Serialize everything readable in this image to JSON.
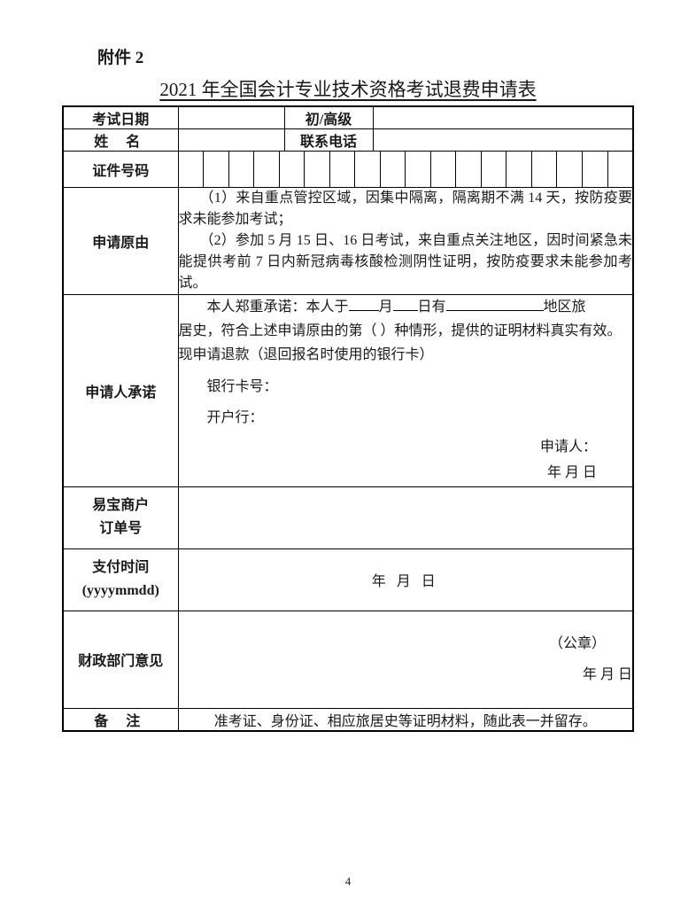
{
  "attachment_label": "附件 2",
  "title": "2021 年全国会计专业技术资格考试退费申请表",
  "row_exam_date_label": "考试日期",
  "row_level_label": "初/高级",
  "row_name_label": "姓 名",
  "row_phone_label": "联系电话",
  "row_id_label": "证件号码",
  "id_box_count": 18,
  "row_reason_label": "申请原由",
  "reason_1": "（1）来自重点管控区域，因集中隔离，隔离期不满 14 天，按防疫要求未能参加考试；",
  "reason_2": "（2）参加 5 月 15 日、16 日考试，来自重点关注地区，因时间紧急未能提供考前 7 日内新冠病毒核酸检测阴性证明，按防疫要求未能参加考试。",
  "row_commitment_label": "申请人承诺",
  "commitment_prefix": "本人郑重承诺：本人于",
  "commitment_month": "月",
  "commitment_day": "日有",
  "commitment_region": "地区旅",
  "commitment_line2": "居史，符合上述申请原由的第（ ）种情形，提供的证明材料真实有效。现申请退款（退回报名时使用的银行卡）",
  "bank_card_label": "银行卡号：",
  "bank_name_label": "开户行：",
  "applicant_label": "申请人：",
  "date_ymd": "年    月    日",
  "row_order_label_1": "易宝商户",
  "row_order_label_2": "订单号",
  "row_paytime_label_1": "支付时间",
  "row_paytime_label_2": "(yyyymmdd)",
  "paytime_date": "年     月     日",
  "row_finance_label": "财政部门意见",
  "finance_seal": "（公章）",
  "finance_date": "年     月     日",
  "row_notes_label": "备 注",
  "notes_text": "准考证、身份证、相应旅居史等证明材料，随此表一并留存。",
  "page_number": "4"
}
